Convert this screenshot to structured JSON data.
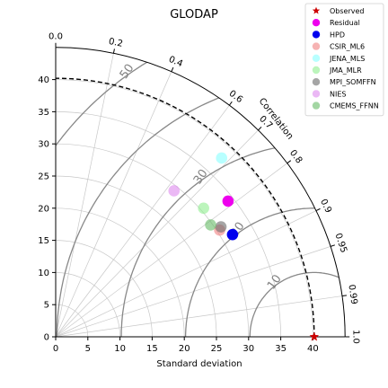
{
  "chart_data": {
    "type": "taylor",
    "title": "GLODAP",
    "xlabel": "Standard deviation",
    "angle_label": "Correlation",
    "std_range": [
      0,
      45
    ],
    "std_ticks": [
      0,
      5,
      10,
      15,
      20,
      25,
      30,
      35,
      40
    ],
    "reference_std": 40.2,
    "correlation_ticks": [
      {
        "value": 0.0,
        "label": "0.0"
      },
      {
        "value": 0.2,
        "label": "0.2"
      },
      {
        "value": 0.4,
        "label": "0.4"
      },
      {
        "value": 0.6,
        "label": "0.6"
      },
      {
        "value": 0.7,
        "label": "0.7"
      },
      {
        "value": 0.8,
        "label": "0.8"
      },
      {
        "value": 0.9,
        "label": "0.9"
      },
      {
        "value": 0.95,
        "label": "0.95"
      },
      {
        "value": 0.99,
        "label": "0.99"
      },
      {
        "value": 1.0,
        "label": "1.0"
      }
    ],
    "rmsd_contours": [
      10,
      20,
      30,
      40,
      50
    ],
    "rmsd_labels": [
      {
        "value": 10,
        "label": "10"
      },
      {
        "value": 20,
        "label": "20"
      },
      {
        "value": 30,
        "label": "30"
      },
      {
        "value": 50,
        "label": "50"
      }
    ],
    "grid": true,
    "legend_position": "top-right",
    "series": [
      {
        "name": "Observed",
        "x": 40.2,
        "y": 0,
        "color": "#cc0000",
        "marker": "star",
        "alpha": 1.0
      },
      {
        "name": "Residual",
        "x": 26.8,
        "y": 21.1,
        "color": "#ee00ee",
        "marker": "circle",
        "alpha": 1.0
      },
      {
        "name": "HPD",
        "x": 27.5,
        "y": 15.9,
        "color": "#0000ee",
        "marker": "circle",
        "alpha": 1.0
      },
      {
        "name": "CSIR_ML6",
        "x": 25.5,
        "y": 16.6,
        "color": "#f08080",
        "marker": "circle",
        "alpha": 0.6
      },
      {
        "name": "JENA_MLS",
        "x": 25.8,
        "y": 27.8,
        "color": "#88ffff",
        "marker": "circle",
        "alpha": 0.6
      },
      {
        "name": "JMA_MLR",
        "x": 23.0,
        "y": 20.0,
        "color": "#90ee90",
        "marker": "circle",
        "alpha": 0.6
      },
      {
        "name": "MPI_SOMFFN",
        "x": 25.7,
        "y": 17.1,
        "color": "#696969",
        "marker": "circle",
        "alpha": 0.6
      },
      {
        "name": "NIES",
        "x": 18.4,
        "y": 22.7,
        "color": "#dd88ee",
        "marker": "circle",
        "alpha": 0.6
      },
      {
        "name": "CMEMS_FFNN",
        "x": 24.1,
        "y": 17.4,
        "color": "#66bb66",
        "marker": "circle",
        "alpha": 0.6
      }
    ]
  }
}
